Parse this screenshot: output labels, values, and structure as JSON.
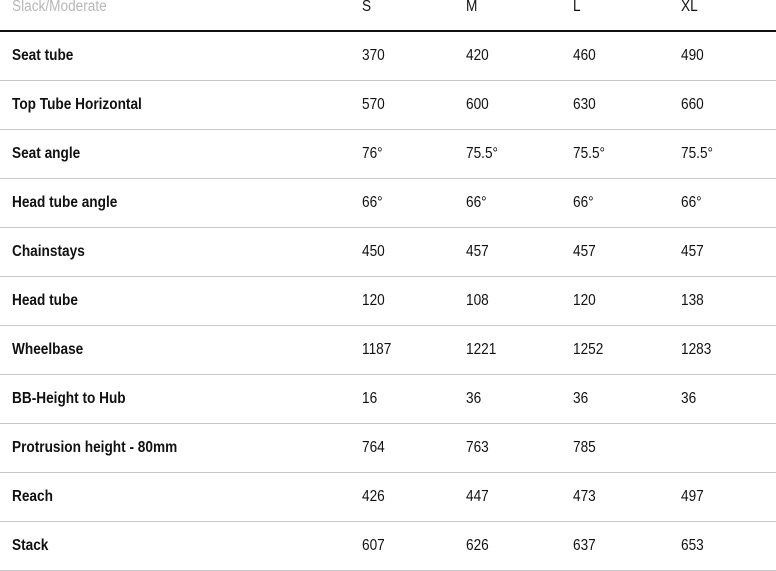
{
  "table": {
    "header": {
      "label": "Slack/Moderate",
      "sizes": [
        "S",
        "M",
        "L",
        "XL"
      ]
    },
    "rows": [
      {
        "label": "Seat tube",
        "values": [
          "370",
          "420",
          "460",
          "490"
        ]
      },
      {
        "label": "Top Tube Horizontal",
        "values": [
          "570",
          "600",
          "630",
          "660"
        ]
      },
      {
        "label": "Seat angle",
        "values": [
          "76°",
          "75.5°",
          "75.5°",
          "75.5°"
        ]
      },
      {
        "label": "Head tube angle",
        "values": [
          "66°",
          "66°",
          "66°",
          "66°"
        ]
      },
      {
        "label": "Chainstays",
        "values": [
          "450",
          "457",
          "457",
          "457"
        ]
      },
      {
        "label": "Head tube",
        "values": [
          "120",
          "108",
          "120",
          "138"
        ]
      },
      {
        "label": "Wheelbase",
        "values": [
          "1187",
          "1221",
          "1252",
          "1283"
        ]
      },
      {
        "label": "BB-Height to Hub",
        "values": [
          "16",
          "36",
          "36",
          "36"
        ]
      },
      {
        "label": "Protrusion height - 80mm",
        "values": [
          "764",
          "763",
          "785",
          ""
        ]
      },
      {
        "label": "Reach",
        "values": [
          "426",
          "447",
          "473",
          "497"
        ]
      },
      {
        "label": "Stack",
        "values": [
          "607",
          "626",
          "637",
          "653"
        ]
      }
    ]
  }
}
